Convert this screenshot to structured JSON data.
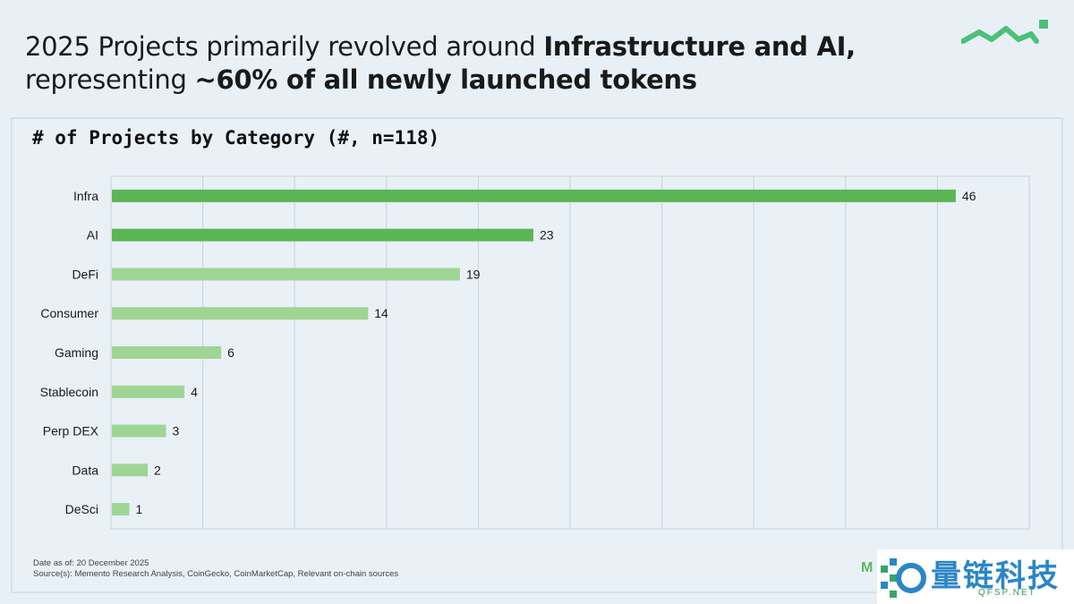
{
  "headline": {
    "line1_regular": "2025 Projects primarily revolved around ",
    "line1_bold": "Infrastructure and AI,",
    "line2_regular": "representing ",
    "line2_bold": "~60% of all newly launched tokens"
  },
  "colors": {
    "dark_green": "#5cb553",
    "light_green": "#9fd594",
    "grid": "#c9d3dc",
    "brand": "#4cc07a"
  },
  "chart_data": {
    "type": "bar",
    "orientation": "horizontal",
    "title": "# of Projects by Category (#, n=118)",
    "categories": [
      "Infra",
      "AI",
      "DeFi",
      "Consumer",
      "Gaming",
      "Stablecoin",
      "Perp DEX",
      "Data",
      "DeSci"
    ],
    "values": [
      46,
      23,
      19,
      14,
      6,
      4,
      3,
      2,
      1
    ],
    "highlighted": [
      true,
      true,
      false,
      false,
      false,
      false,
      false,
      false,
      false
    ],
    "xlim": [
      0,
      50
    ],
    "grid": true,
    "data_labels": true
  },
  "footnote": {
    "date": "Date as of: 20 December 2025",
    "sources": "Source(s): Memento Research Analysis, CoinGecko, CoinMarketCap, Relevant on-chain sources"
  },
  "corner_letter": "M",
  "watermark": {
    "text": "量链科技",
    "sub": "QFSP.NET"
  }
}
